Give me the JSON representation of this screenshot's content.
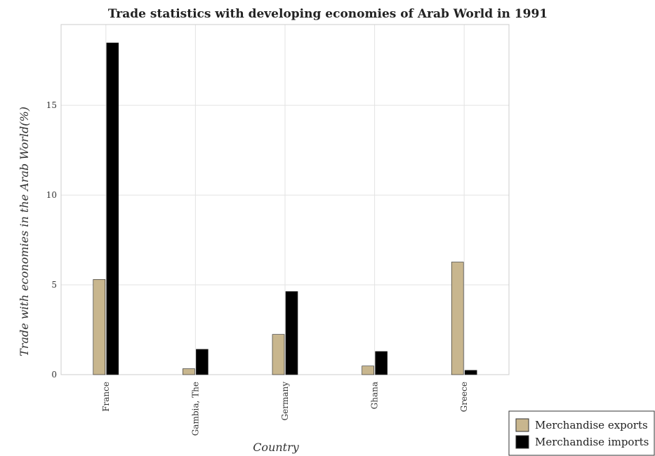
{
  "chart_data": {
    "type": "bar",
    "title": "Trade statistics with developing economies of Arab World in 1991",
    "xlabel": "Country",
    "ylabel": "Trade with economies in the Arab World(%)",
    "categories": [
      "France",
      "Gambia, The",
      "Germany",
      "Ghana",
      "Greece"
    ],
    "ylim": [
      0,
      19.5
    ],
    "yticks": [
      0,
      5,
      10,
      15
    ],
    "grid": true,
    "legend_position": "bottom-right",
    "series": [
      {
        "name": "Merchandise exports",
        "color": "#c8b68e",
        "values": [
          5.3,
          0.33,
          2.24,
          0.48,
          6.27
        ]
      },
      {
        "name": "Merchandise imports",
        "color": "#000000",
        "values": [
          18.48,
          1.41,
          4.63,
          1.29,
          0.24
        ]
      }
    ]
  }
}
